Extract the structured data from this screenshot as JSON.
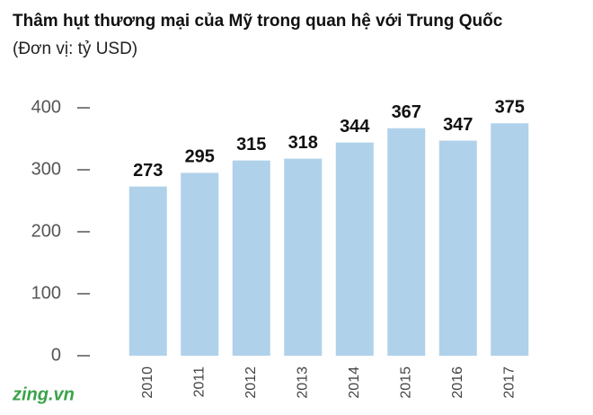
{
  "chart_data": {
    "type": "bar",
    "title": "Thâm hụt thương mại của Mỹ trong quan hệ với Trung Quốc",
    "subtitle": "(Đơn vị: tỷ USD)",
    "categories": [
      "2010",
      "2011",
      "2012",
      "2013",
      "2014",
      "2015",
      "2016",
      "2017"
    ],
    "values": [
      273,
      295,
      315,
      318,
      344,
      367,
      347,
      375
    ],
    "color": "#b0d1ea",
    "ylim": [
      0,
      400
    ],
    "yticks": [
      0,
      100,
      200,
      300,
      400
    ],
    "grid": false
  },
  "logo": "zing.vn"
}
